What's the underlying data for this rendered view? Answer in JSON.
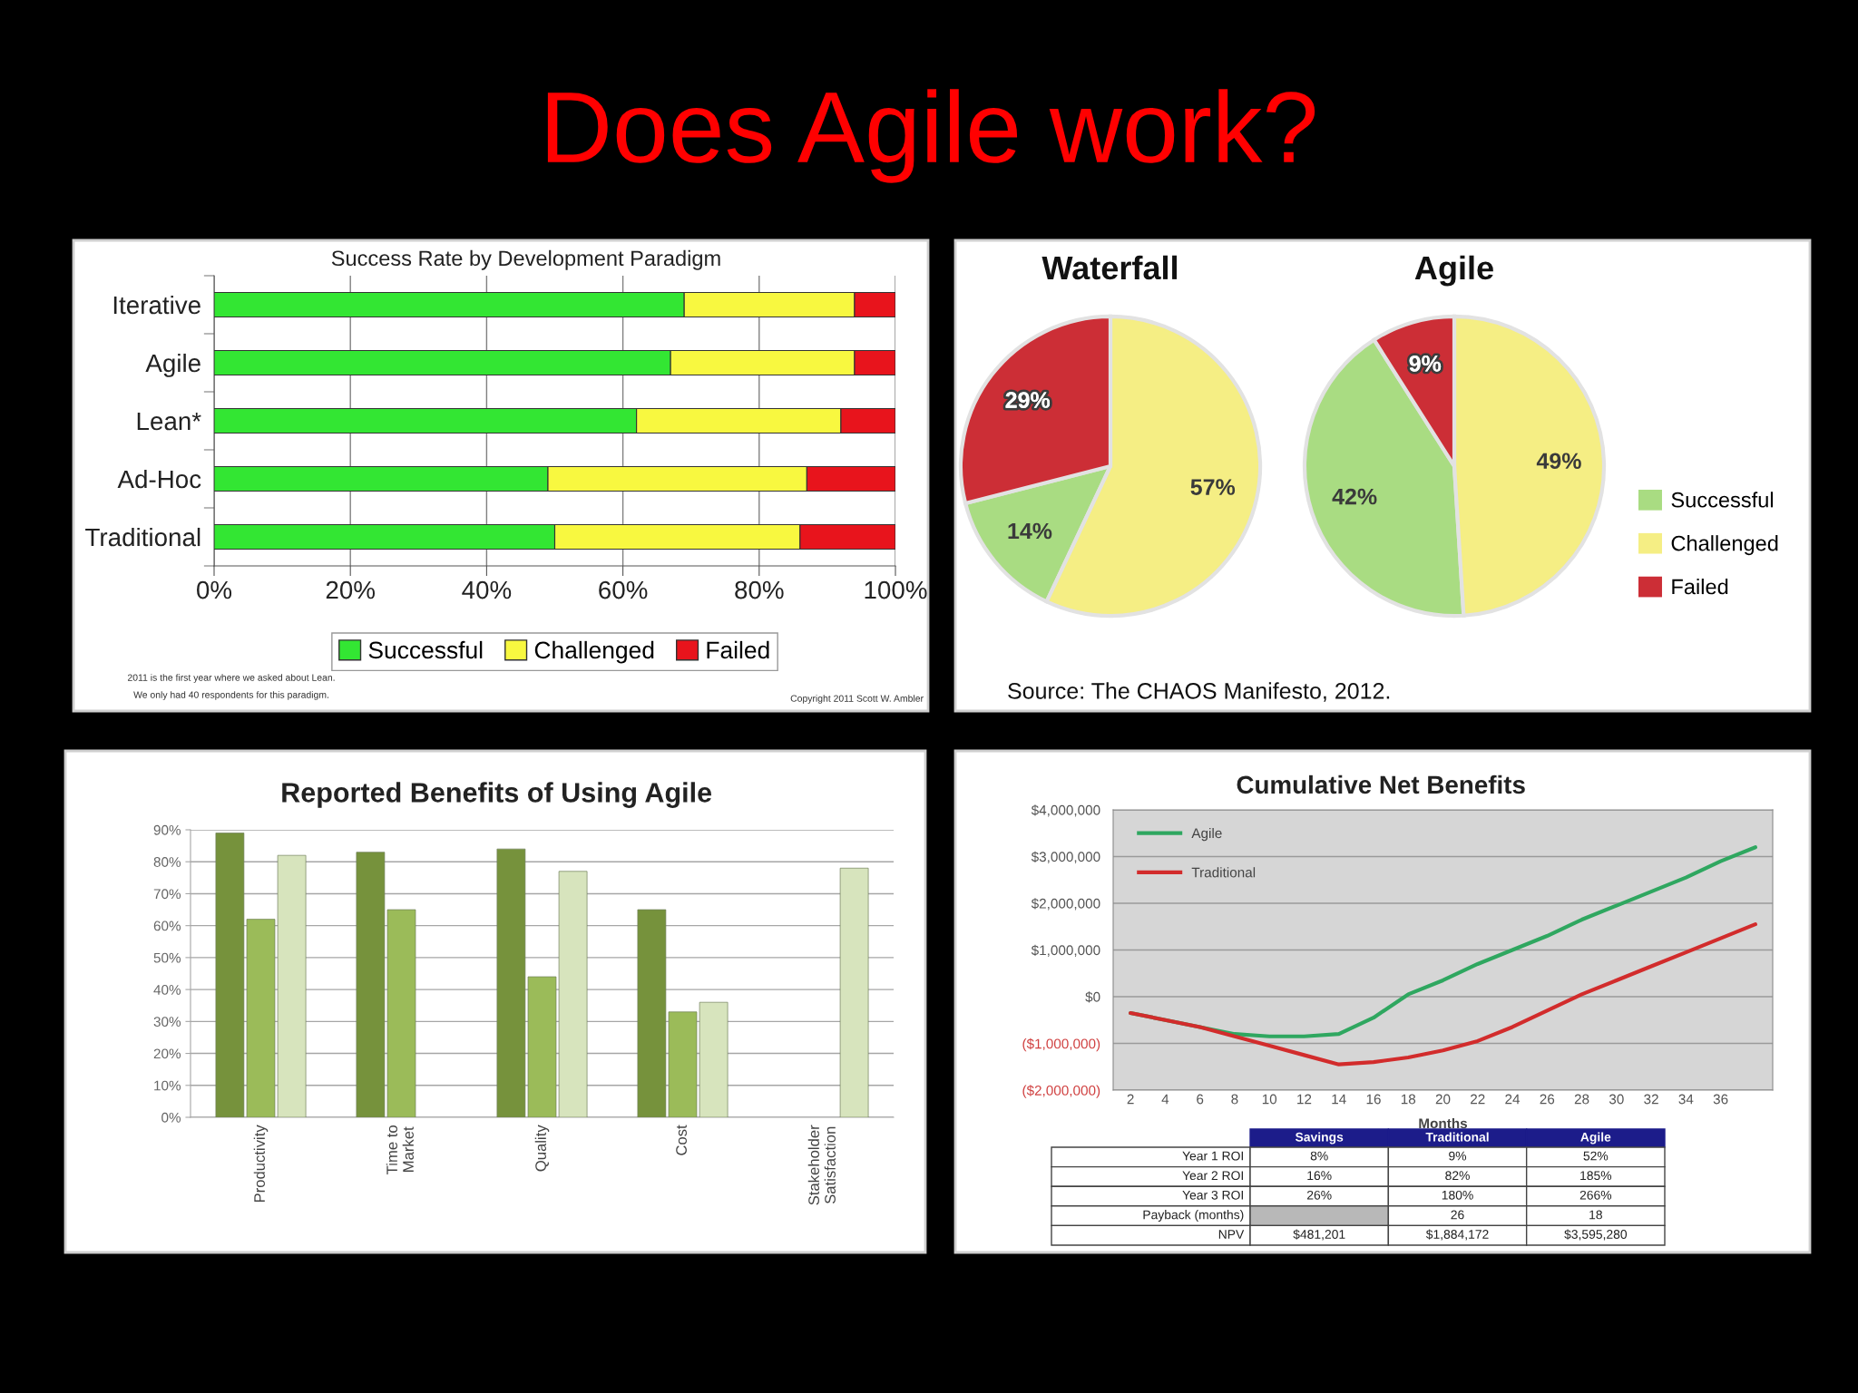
{
  "chart_data": [
    {
      "type": "other",
      "title": "Does Agile work?"
    },
    {
      "type": "bar",
      "title": "Success Rate by Development Paradigm",
      "orientation": "horizontal",
      "stacked": true,
      "categories": [
        "Iterative",
        "Agile",
        "Lean*",
        "Ad-Hoc",
        "Traditional"
      ],
      "series": [
        {
          "name": "Successful",
          "color": "#33e633",
          "values": [
            69,
            67,
            62,
            49,
            50
          ]
        },
        {
          "name": "Challenged",
          "color": "#f8f840",
          "values": [
            25,
            27,
            30,
            38,
            36
          ]
        },
        {
          "name": "Failed",
          "color": "#e8141c",
          "values": [
            6,
            6,
            8,
            13,
            14
          ]
        }
      ],
      "xlim": [
        0,
        100
      ],
      "xticks": [
        {
          "value": 0,
          "label": "0%"
        },
        {
          "value": 20,
          "label": "20%"
        },
        {
          "value": 40,
          "label": "40%"
        },
        {
          "value": 60,
          "label": "60%"
        },
        {
          "value": 80,
          "label": "80%"
        },
        {
          "value": 100,
          "label": "100%"
        }
      ],
      "grid": "x",
      "legend": "bottom",
      "annotations": [
        "2011 is the first year where we asked about Lean.",
        "We only had 40 respondents for this paradigm.",
        "Copyright 2011 Scott W. Ambler"
      ]
    },
    {
      "type": "pie",
      "title": "Waterfall",
      "categories": [
        "Successful",
        "Challenged",
        "Failed"
      ],
      "values": [
        14,
        57,
        29
      ],
      "colors": [
        "#a9dc82",
        "#f5ee84",
        "#cc2e36"
      ],
      "value_labels": [
        "14%",
        "57%",
        "29%"
      ],
      "legend": "right",
      "annotations": [
        "Source: The CHAOS Manifesto, 2012."
      ]
    },
    {
      "type": "pie",
      "title": "Agile",
      "categories": [
        null,
        null,
        null
      ],
      "values": [
        42,
        49,
        9
      ],
      "colors": [
        "#a9dc82",
        "#f5ee84",
        "#cc2e36"
      ],
      "value_labels": [
        "42%",
        "49%",
        "9%"
      ]
    },
    {
      "type": "bar",
      "title": "Reported Benefits of Using Agile",
      "categories": [
        "Productivity",
        "Time to Market",
        "Quality",
        "Cost",
        "Stakeholder Satisfaction"
      ],
      "series": [
        {
          "color": "#76923c",
          "values": [
            89,
            83,
            84,
            65,
            null
          ]
        },
        {
          "color": "#9bbb59",
          "values": [
            62,
            65,
            44,
            33,
            null
          ]
        },
        {
          "color": "#d7e4bd",
          "values": [
            82,
            null,
            77,
            36,
            78
          ]
        }
      ],
      "ylim": [
        0,
        90
      ],
      "yticks": [
        {
          "value": 0,
          "label": "0%"
        },
        {
          "value": 10,
          "label": "10%"
        },
        {
          "value": 20,
          "label": "20%"
        },
        {
          "value": 30,
          "label": "30%"
        },
        {
          "value": 40,
          "label": "40%"
        },
        {
          "value": 50,
          "label": "50%"
        },
        {
          "value": 60,
          "label": "60%"
        },
        {
          "value": 70,
          "label": "70%"
        },
        {
          "value": 80,
          "label": "80%"
        },
        {
          "value": 90,
          "label": "90%"
        }
      ],
      "grid": "y"
    },
    {
      "type": "line",
      "title": "Cumulative Net Benefits",
      "xlabel": "Months",
      "x": [
        2,
        4,
        6,
        8,
        10,
        12,
        14,
        16,
        18,
        20,
        22,
        24,
        26,
        28,
        30,
        32,
        34,
        36,
        38
      ],
      "series": [
        {
          "name": "Agile",
          "color": "#2fa760",
          "values": [
            -350000,
            -500000,
            -650000,
            -800000,
            -850000,
            -850000,
            -800000,
            -450000,
            50000,
            350000,
            700000,
            1000000,
            1300000,
            1650000,
            1950000,
            2250000,
            2550000,
            2900000,
            3200000
          ]
        },
        {
          "name": "Traditional",
          "color": "#d22c2c",
          "values": [
            -350000,
            -500000,
            -650000,
            -850000,
            -1050000,
            -1250000,
            -1450000,
            -1400000,
            -1300000,
            -1150000,
            -950000,
            -650000,
            -300000,
            50000,
            350000,
            650000,
            950000,
            1250000,
            1550000
          ]
        }
      ],
      "xlim": [
        1,
        39
      ],
      "xticks": [
        2,
        4,
        6,
        8,
        10,
        12,
        14,
        16,
        18,
        20,
        22,
        24,
        26,
        28,
        30,
        32,
        34,
        36
      ],
      "ylim": [
        -2000000,
        4000000
      ],
      "yticks": [
        {
          "value": -2000000,
          "label": "($2,000,000)"
        },
        {
          "value": -1000000,
          "label": "($1,000,000)"
        },
        {
          "value": 0,
          "label": "$0"
        },
        {
          "value": 1000000,
          "label": "$1,000,000"
        },
        {
          "value": 2000000,
          "label": "$2,000,000"
        },
        {
          "value": 3000000,
          "label": "$3,000,000"
        },
        {
          "value": 4000000,
          "label": "$4,000,000"
        }
      ],
      "grid": "y",
      "legend": "top left"
    },
    {
      "type": "other",
      "categories": [
        "Savings",
        "Traditional",
        "Agile"
      ],
      "y_categories": [
        "Year 1 ROI",
        "Year 2 ROI",
        "Year 3 ROI",
        "Payback (months)",
        "NPV"
      ],
      "cell_labels": [
        [
          "8%",
          "9%",
          "52%"
        ],
        [
          "16%",
          "82%",
          "185%"
        ],
        [
          "26%",
          "180%",
          "266%"
        ],
        [
          null,
          "26",
          "18"
        ],
        [
          "$481,201",
          "$1,884,172",
          "$3,595,280"
        ]
      ]
    }
  ]
}
